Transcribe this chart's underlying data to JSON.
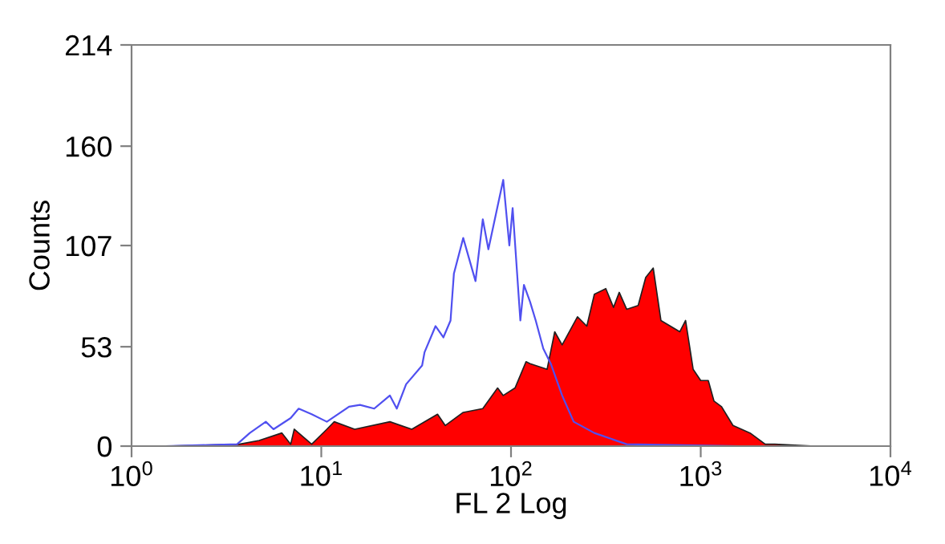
{
  "chart_data": {
    "type": "area",
    "xlabel": "FL 2 Log",
    "ylabel": "Counts",
    "log": "x",
    "grid": false,
    "xlim": [
      1,
      10000
    ],
    "xticks": [
      {
        "value": 1,
        "label": "10$^{0}$"
      },
      {
        "value": 10,
        "label": "10$^{1}$"
      },
      {
        "value": 100,
        "label": "10$^{2}$"
      },
      {
        "value": 1000,
        "label": "10$^{3}$"
      },
      {
        "value": 10000,
        "label": "10$^{4}$"
      }
    ],
    "ylim": [
      0,
      214
    ],
    "yticks": [
      0,
      53,
      107,
      160,
      214
    ],
    "series": [
      {
        "color": "#ff0000",
        "x": [
          1.5,
          3.7,
          4.7,
          6.2,
          6.9,
          7.2,
          8.9,
          10.7,
          11.7,
          15,
          23,
          30,
          41,
          45,
          56,
          71,
          85,
          91,
          105,
          120,
          126,
          155,
          170,
          186,
          224,
          251,
          275,
          316,
          347,
          372,
          407,
          468,
          513,
          562,
          617,
          692,
          776,
          832,
          912,
          1000,
          1096,
          1175,
          1288,
          1479,
          1820,
          2188,
          2455,
          4000
        ],
        "values": [
          0,
          1,
          3,
          7,
          1,
          9,
          1,
          9,
          13,
          9,
          13,
          9,
          17,
          11,
          18,
          20,
          31,
          27,
          31,
          45,
          44,
          41,
          61,
          54,
          69,
          64,
          81,
          84,
          74,
          82,
          73,
          75,
          90,
          95,
          67,
          64,
          61,
          67,
          41,
          35,
          35,
          24,
          21,
          11,
          7,
          1,
          1,
          0
        ]
      },
      {
        "type": "line",
        "color": "#5050f0",
        "x": [
          1.5,
          3.6,
          4.2,
          5.1,
          5.6,
          6.9,
          7.6,
          8.9,
          10.7,
          14,
          16,
          19,
          23,
          25,
          28,
          34,
          35,
          40,
          44,
          48,
          50,
          56,
          65,
          71,
          76,
          91,
          98,
          102,
          112,
          117,
          126,
          135,
          148,
          162,
          186,
          214,
          275,
          407,
          1600
        ],
        "values": [
          0,
          1,
          7,
          13,
          9,
          15,
          20,
          17,
          13,
          21,
          22,
          20,
          27,
          20,
          33,
          43,
          50,
          64,
          58,
          67,
          92,
          111,
          88,
          121,
          105,
          142,
          107,
          127,
          67,
          86,
          77,
          67,
          52,
          44,
          27,
          13,
          7,
          1,
          0
        ]
      }
    ]
  }
}
